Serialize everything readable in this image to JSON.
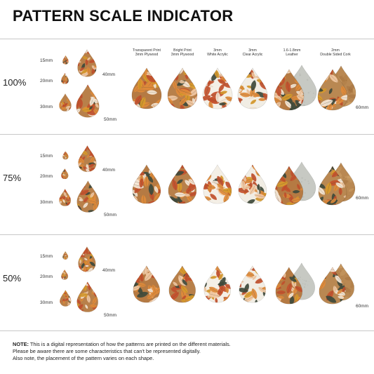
{
  "title": "PATTERN SCALE INDICATOR",
  "materials": [
    {
      "line1": "Transparent Print",
      "line2": "3mm Plywood",
      "base": "#b57a43",
      "variant": "print"
    },
    {
      "line1": "Bright Print",
      "line2": "3mm Plywood",
      "base": "#b8804a",
      "variant": "print"
    },
    {
      "line1": "3mm",
      "line2": "White Acrylic",
      "base": "#f4efe6",
      "variant": "print"
    },
    {
      "line1": "3mm",
      "line2": "Clear Acrylic",
      "base": "#f1ede4",
      "variant": "print"
    },
    {
      "line1": "1.6-1.8mm",
      "line2": "Leather",
      "base": "#c7c9c3",
      "variant": "leather"
    },
    {
      "line1": "2mm",
      "line2": "Double Sided Cork",
      "base": "#b98852",
      "variant": "cork"
    }
  ],
  "sizes": [
    "15mm",
    "20mm",
    "30mm",
    "40mm",
    "50mm"
  ],
  "size_note": "60mm",
  "rows": [
    {
      "label": "100%",
      "scale": 1.0
    },
    {
      "label": "75%",
      "scale": 0.75
    },
    {
      "label": "50%",
      "scale": 0.5
    }
  ],
  "colors": {
    "leaf_rust": "#c4502c",
    "leaf_orange": "#e08a3a",
    "leaf_dark": "#3f4a3c",
    "leaf_pale": "#f2c9a4",
    "leaf_mustard": "#d99a2b",
    "leaf_white": "#f6e8d8",
    "divider": "#c8c8c8"
  },
  "note": {
    "bold": "NOTE:",
    "line1": " This is a digital representation of how the patterns are printed on the different materials.",
    "line2": "Please be aware there are some characteristics that can't be represented digitally.",
    "line3": "Also note, the placement of the pattern varies on each shape."
  }
}
